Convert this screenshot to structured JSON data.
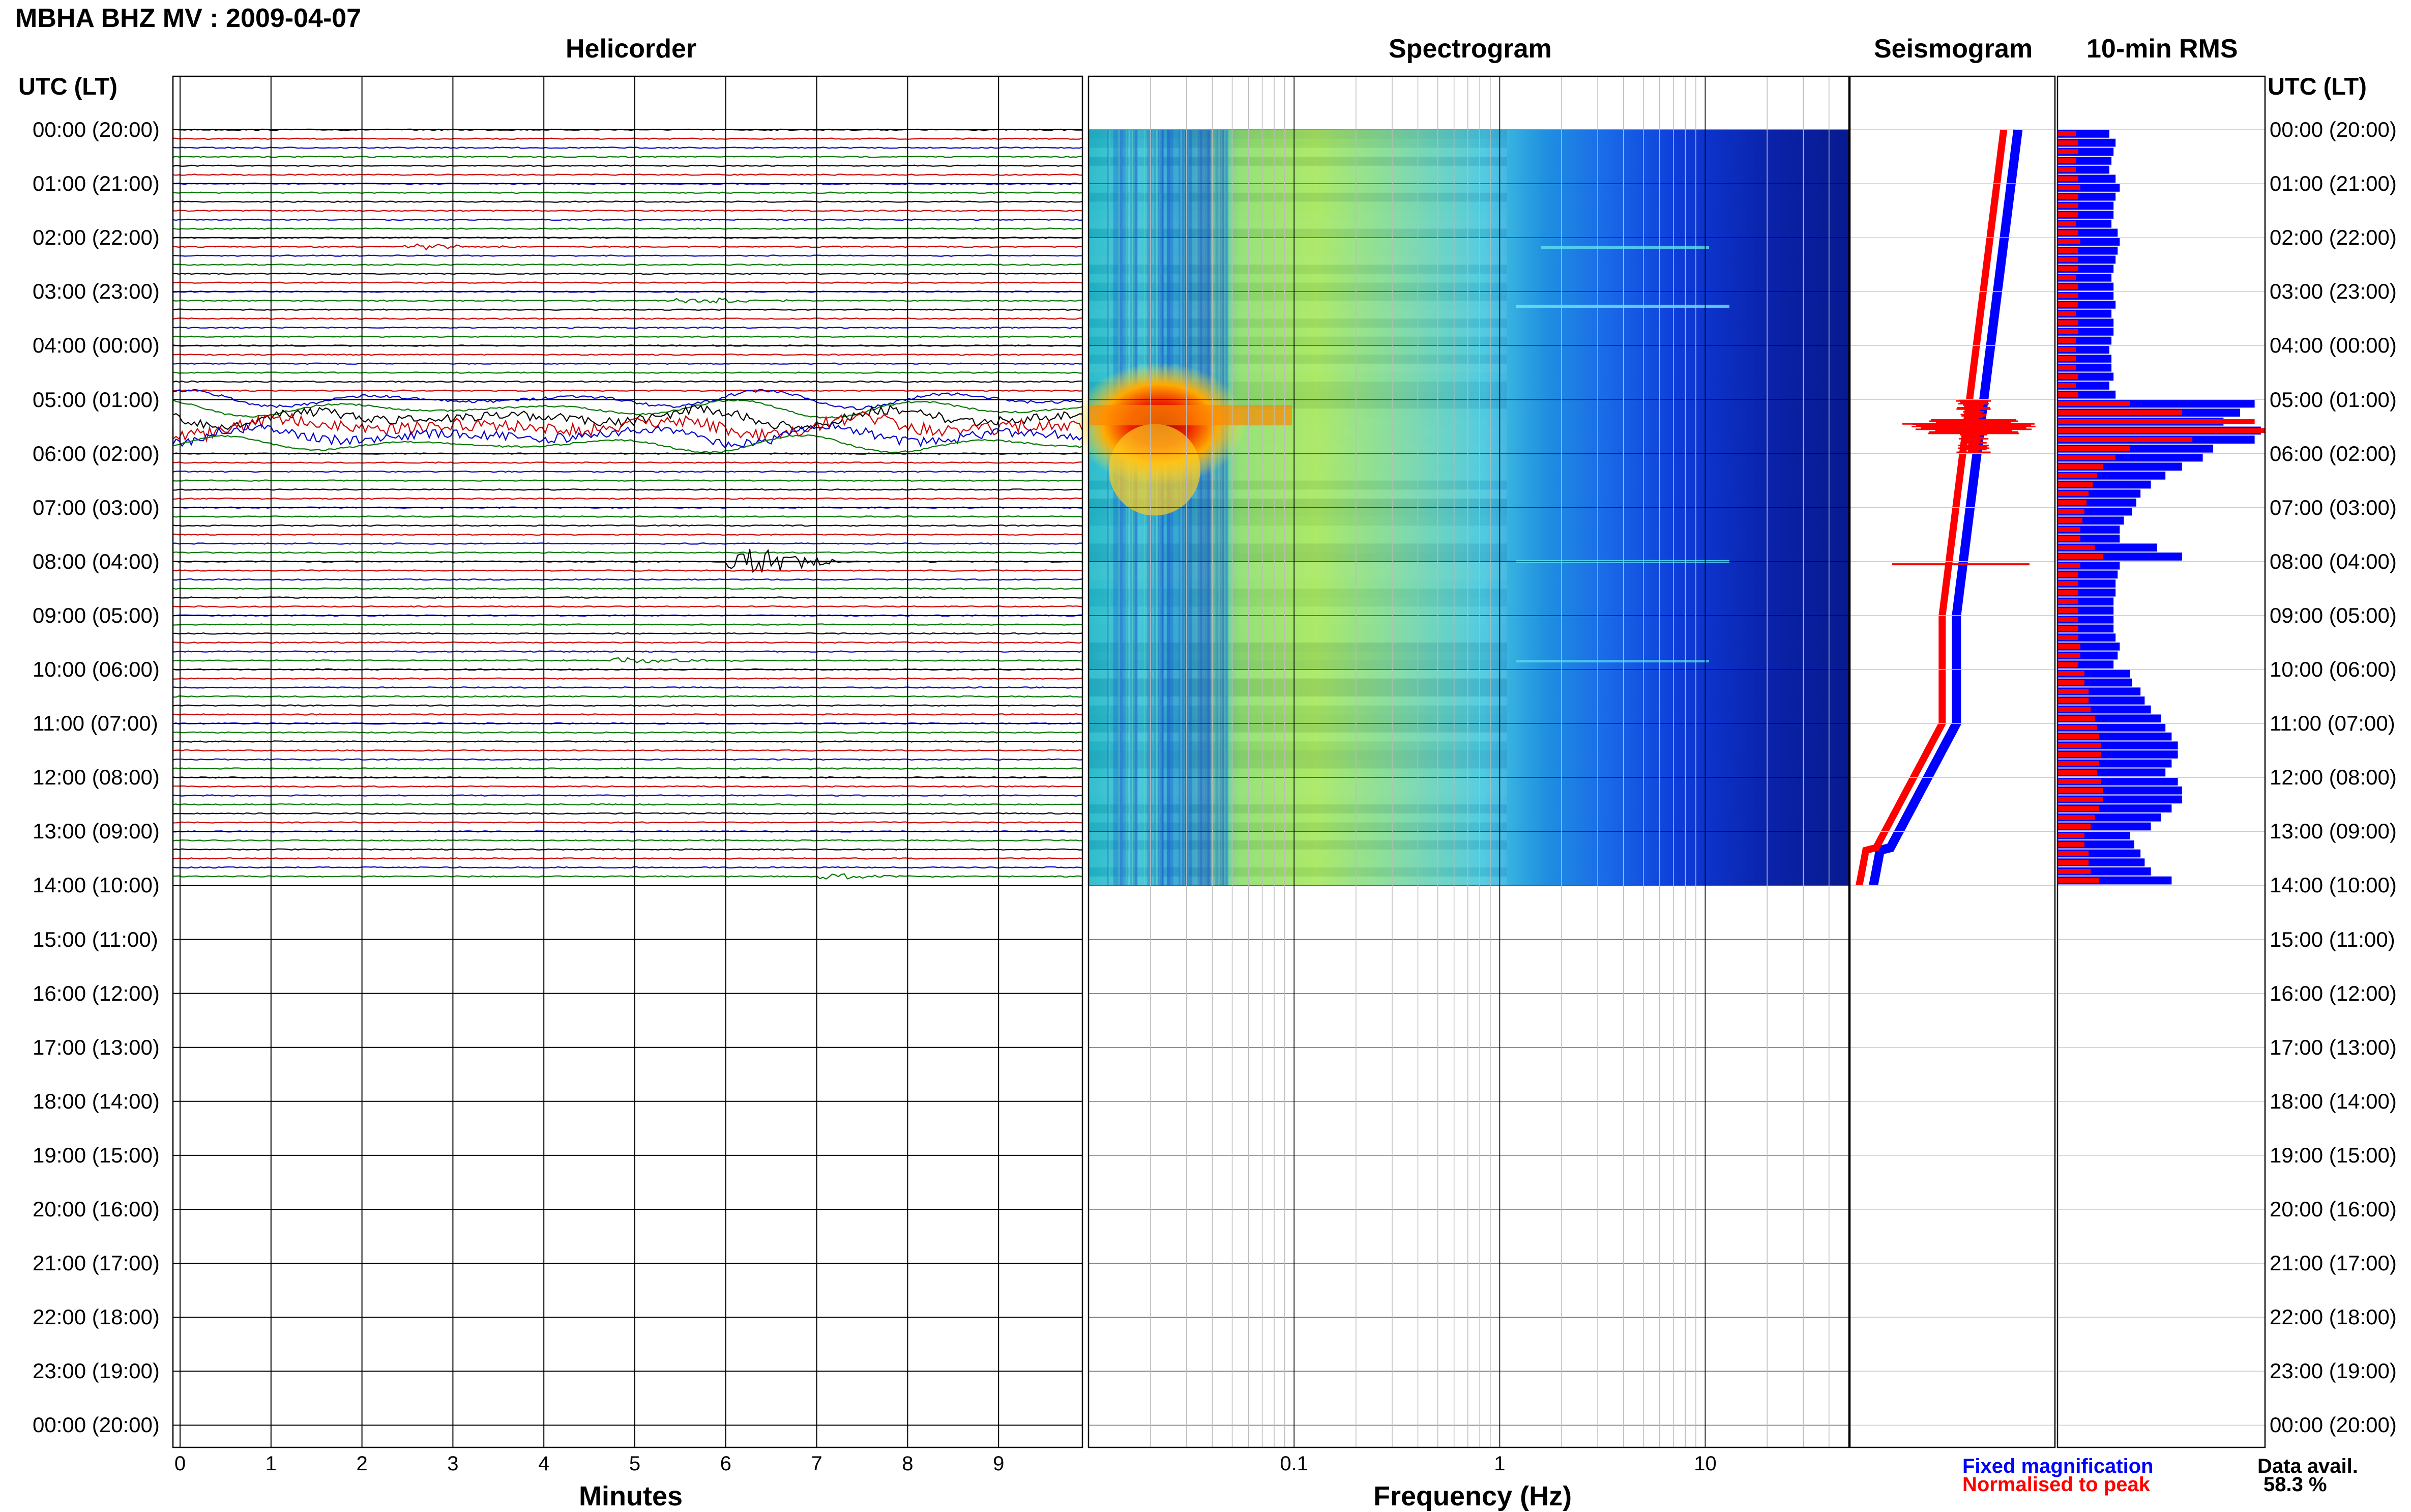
{
  "header": {
    "title": "MBHA BHZ MV : 2009-04-07",
    "utc_left": "UTC (LT)",
    "utc_right": "UTC (LT)"
  },
  "panels": {
    "helicorder": "Helicorder",
    "spectrogram": "Spectrogram",
    "seismogram": "Seismogram",
    "rms": "10-min RMS"
  },
  "legend": {
    "fixed": "Fixed magnification",
    "normalised": "Normalised to peak",
    "data_avail_label": "Data avail.",
    "data_avail_value": "58.3 %"
  },
  "colors": {
    "fixed": "#0000ff",
    "normalised": "#ff0000",
    "trace_cycle": [
      "#000000",
      "#cc0000",
      "#0000cc",
      "#007700"
    ]
  },
  "chart_data": {
    "type": "helicorder",
    "time_labels": [
      "00:00 (20:00)",
      "01:00 (21:00)",
      "02:00 (22:00)",
      "03:00 (23:00)",
      "04:00 (00:00)",
      "05:00 (01:00)",
      "06:00 (02:00)",
      "07:00 (03:00)",
      "08:00 (04:00)",
      "09:00 (05:00)",
      "10:00 (06:00)",
      "11:00 (07:00)",
      "12:00 (08:00)",
      "13:00 (09:00)",
      "14:00 (10:00)",
      "15:00 (11:00)",
      "16:00 (12:00)",
      "17:00 (13:00)",
      "18:00 (14:00)",
      "19:00 (15:00)",
      "20:00 (16:00)",
      "21:00 (17:00)",
      "22:00 (18:00)",
      "23:00 (19:00)",
      "00:00 (20:00)"
    ],
    "data_end_hour": 14,
    "helicorder": {
      "xlabel": "Minutes",
      "xticks": [
        0,
        1,
        2,
        3,
        4,
        5,
        6,
        7,
        8,
        9
      ],
      "xlim": [
        0,
        10
      ],
      "traces_per_hour": 6,
      "events": [
        {
          "hour": 2.2,
          "minute": 2.5,
          "color": "blue",
          "amp": "small"
        },
        {
          "hour": 3.1,
          "minute": 5.5,
          "color": "green",
          "amp": "small"
        },
        {
          "hour": 5.5,
          "minute": 0,
          "color": "mixed",
          "amp": "large, long period"
        },
        {
          "hour": 8.0,
          "minute": 6.1,
          "color": "black",
          "amp": "large"
        },
        {
          "hour": 9.8,
          "minute": 4.8,
          "color": "green",
          "amp": "small"
        },
        {
          "hour": 13.8,
          "minute": 7.1,
          "color": "blue",
          "amp": "small"
        }
      ]
    },
    "spectrogram": {
      "xlabel": "Frequency (Hz)",
      "xscale": "log",
      "xlim": [
        0.01,
        50
      ],
      "xticks": [
        0.1,
        1,
        10
      ],
      "xtick_labels": [
        "0.1",
        "1",
        "10"
      ]
    },
    "seismogram": {
      "series": [
        {
          "name": "Fixed magnification",
          "color": "blue"
        },
        {
          "name": "Normalised to peak",
          "color": "red"
        }
      ]
    },
    "rms": {
      "bins_per_hour": 6,
      "values_fixed": [
        0.25,
        0.28,
        0.27,
        0.26,
        0.25,
        0.28,
        0.3,
        0.28,
        0.27,
        0.27,
        0.26,
        0.29,
        0.3,
        0.29,
        0.28,
        0.27,
        0.26,
        0.27,
        0.27,
        0.28,
        0.26,
        0.27,
        0.27,
        0.26,
        0.25,
        0.26,
        0.26,
        0.27,
        0.25,
        0.28,
        0.95,
        0.88,
        0.8,
        0.98,
        0.95,
        0.75,
        0.7,
        0.6,
        0.52,
        0.45,
        0.4,
        0.38,
        0.36,
        0.32,
        0.3,
        0.3,
        0.48,
        0.6,
        0.3,
        0.29,
        0.28,
        0.28,
        0.27,
        0.27,
        0.27,
        0.27,
        0.28,
        0.3,
        0.29,
        0.27,
        0.35,
        0.36,
        0.4,
        0.42,
        0.45,
        0.5,
        0.52,
        0.55,
        0.58,
        0.58,
        0.55,
        0.52,
        0.58,
        0.6,
        0.6,
        0.55,
        0.5,
        0.45,
        0.35,
        0.37,
        0.4,
        0.42,
        0.45,
        0.55
      ],
      "values_normalised": [
        0.09,
        0.1,
        0.1,
        0.09,
        0.09,
        0.1,
        0.11,
        0.1,
        0.1,
        0.1,
        0.09,
        0.1,
        0.11,
        0.1,
        0.1,
        0.1,
        0.09,
        0.1,
        0.1,
        0.1,
        0.09,
        0.1,
        0.1,
        0.09,
        0.09,
        0.09,
        0.09,
        0.1,
        0.09,
        0.1,
        0.35,
        0.6,
        0.95,
        1.0,
        0.65,
        0.35,
        0.28,
        0.22,
        0.19,
        0.17,
        0.15,
        0.14,
        0.13,
        0.12,
        0.11,
        0.11,
        0.18,
        0.22,
        0.11,
        0.1,
        0.1,
        0.1,
        0.1,
        0.1,
        0.1,
        0.1,
        0.1,
        0.11,
        0.11,
        0.1,
        0.13,
        0.13,
        0.15,
        0.15,
        0.16,
        0.18,
        0.19,
        0.2,
        0.21,
        0.21,
        0.2,
        0.19,
        0.21,
        0.22,
        0.22,
        0.2,
        0.18,
        0.16,
        0.13,
        0.13,
        0.15,
        0.15,
        0.16,
        0.2
      ]
    }
  }
}
